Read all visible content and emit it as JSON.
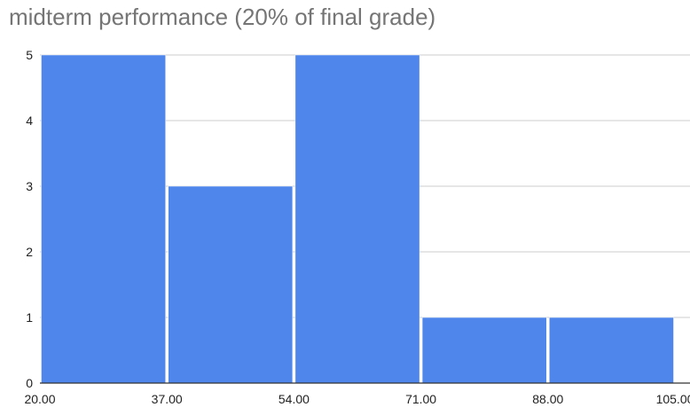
{
  "chart_data": {
    "type": "bar",
    "title": "midterm performance (20% of final grade)",
    "bin_edges": [
      20,
      37,
      54,
      71,
      88,
      105
    ],
    "x_tick_labels": [
      "20.00",
      "37.00",
      "54.00",
      "71.00",
      "88.00",
      "105.00"
    ],
    "values": [
      5,
      3,
      5,
      1,
      1
    ],
    "ylim": [
      0,
      5
    ],
    "y_ticks": [
      "0",
      "1",
      "2",
      "3",
      "4",
      "5"
    ],
    "xlabel": "",
    "ylabel": "",
    "grid": true,
    "bar_color": "#4f86ec",
    "grid_color": "#cccccc",
    "axis_color": "#333333"
  }
}
